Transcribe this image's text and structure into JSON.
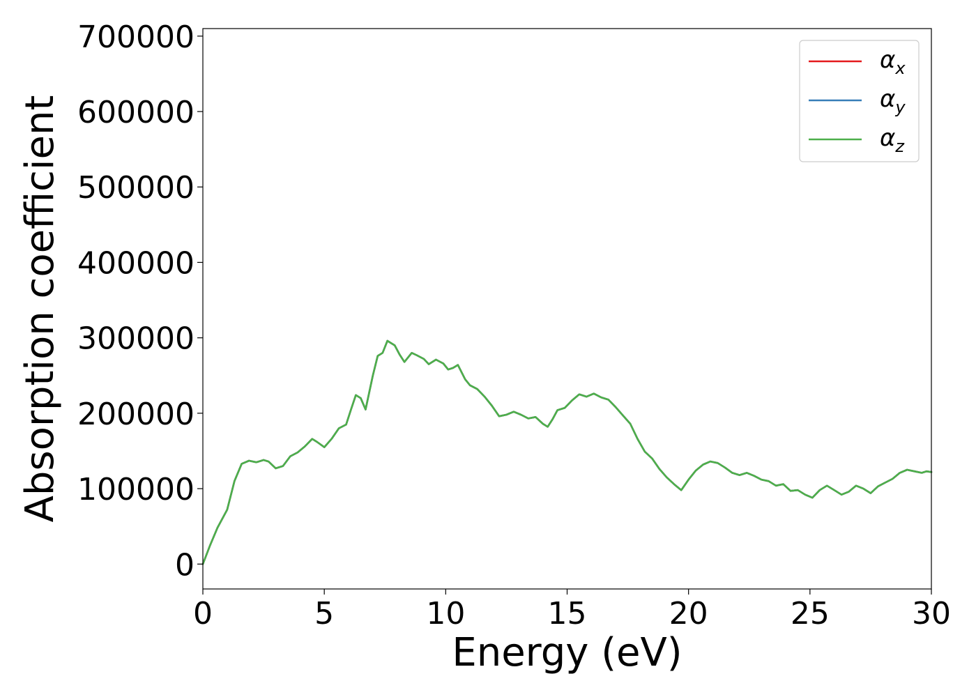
{
  "chart_data": {
    "type": "line",
    "xlabel": "Energy (eV)",
    "ylabel": "Absorption coefficient",
    "xlim": [
      0,
      30
    ],
    "ylim": [
      -33000,
      710000
    ],
    "x_ticks": [
      0,
      5,
      10,
      15,
      20,
      25,
      30
    ],
    "y_ticks": [
      0,
      100000,
      200000,
      300000,
      400000,
      500000,
      600000,
      700000
    ],
    "grid": false,
    "legend_position": "top-right",
    "x": [
      0,
      0.3,
      0.6,
      1.0,
      1.3,
      1.6,
      1.9,
      2.2,
      2.5,
      2.7,
      3.0,
      3.3,
      3.6,
      3.9,
      4.2,
      4.5,
      4.7,
      5.0,
      5.3,
      5.6,
      5.9,
      6.1,
      6.3,
      6.5,
      6.7,
      7.0,
      7.2,
      7.4,
      7.6,
      7.9,
      8.1,
      8.3,
      8.6,
      8.8,
      9.1,
      9.3,
      9.6,
      9.9,
      10.1,
      10.3,
      10.5,
      10.8,
      11.0,
      11.3,
      11.6,
      11.9,
      12.2,
      12.5,
      12.8,
      13.1,
      13.4,
      13.7,
      14.0,
      14.2,
      14.4,
      14.6,
      14.9,
      15.2,
      15.5,
      15.8,
      16.1,
      16.4,
      16.7,
      17.0,
      17.3,
      17.6,
      17.9,
      18.2,
      18.5,
      18.8,
      19.1,
      19.4,
      19.7,
      20.0,
      20.3,
      20.6,
      20.9,
      21.2,
      21.5,
      21.8,
      22.1,
      22.4,
      22.7,
      23.0,
      23.3,
      23.6,
      23.9,
      24.2,
      24.5,
      24.8,
      25.1,
      25.4,
      25.7,
      26.0,
      26.3,
      26.6,
      26.9,
      27.2,
      27.5,
      27.8,
      28.1,
      28.4,
      28.7,
      29.0,
      29.3,
      29.6,
      29.8,
      30.0
    ],
    "series": [
      {
        "name": "α_x",
        "color": "#e41a1c",
        "values": [
          0,
          25000,
          48000,
          72000,
          110000,
          133000,
          137000,
          135000,
          138000,
          136000,
          127000,
          130000,
          143000,
          148000,
          156000,
          166000,
          162000,
          155000,
          166000,
          180000,
          185000,
          205000,
          224000,
          220000,
          205000,
          250000,
          276000,
          280000,
          296000,
          290000,
          278000,
          268000,
          280000,
          277000,
          272000,
          265000,
          271000,
          266000,
          258000,
          260000,
          264000,
          245000,
          237000,
          232000,
          222000,
          210000,
          196000,
          198000,
          202000,
          198000,
          193000,
          195000,
          186000,
          182000,
          192000,
          204000,
          207000,
          217000,
          225000,
          222000,
          226000,
          221000,
          218000,
          208000,
          197000,
          186000,
          166000,
          149000,
          140000,
          126000,
          115000,
          106000,
          98000,
          112000,
          124000,
          132000,
          136000,
          134000,
          128000,
          121000,
          118000,
          121000,
          117000,
          112000,
          110000,
          104000,
          106000,
          97000,
          98000,
          92000,
          88000,
          98000,
          104000,
          98000,
          92000,
          96000,
          104000,
          100000,
          94000,
          103000,
          108000,
          113000,
          121000,
          125000,
          123000,
          121000,
          123000,
          122000
        ]
      },
      {
        "name": "α_y",
        "color": "#377eb8",
        "values": [
          0,
          25000,
          48000,
          72000,
          110000,
          133000,
          137000,
          135000,
          138000,
          136000,
          127000,
          130000,
          143000,
          148000,
          156000,
          166000,
          162000,
          155000,
          166000,
          180000,
          185000,
          205000,
          224000,
          220000,
          205000,
          250000,
          276000,
          280000,
          296000,
          290000,
          278000,
          268000,
          280000,
          277000,
          272000,
          265000,
          271000,
          266000,
          258000,
          260000,
          264000,
          245000,
          237000,
          232000,
          222000,
          210000,
          196000,
          198000,
          202000,
          198000,
          193000,
          195000,
          186000,
          182000,
          192000,
          204000,
          207000,
          217000,
          225000,
          222000,
          226000,
          221000,
          218000,
          208000,
          197000,
          186000,
          166000,
          149000,
          140000,
          126000,
          115000,
          106000,
          98000,
          112000,
          124000,
          132000,
          136000,
          134000,
          128000,
          121000,
          118000,
          121000,
          117000,
          112000,
          110000,
          104000,
          106000,
          97000,
          98000,
          92000,
          88000,
          98000,
          104000,
          98000,
          92000,
          96000,
          104000,
          100000,
          94000,
          103000,
          108000,
          113000,
          121000,
          125000,
          123000,
          121000,
          123000,
          122000
        ]
      },
      {
        "name": "α_z",
        "color": "#4daf4a",
        "values": [
          0,
          25000,
          48000,
          72000,
          110000,
          133000,
          137000,
          135000,
          138000,
          136000,
          127000,
          130000,
          143000,
          148000,
          156000,
          166000,
          162000,
          155000,
          166000,
          180000,
          185000,
          205000,
          224000,
          220000,
          205000,
          250000,
          276000,
          280000,
          296000,
          290000,
          278000,
          268000,
          280000,
          277000,
          272000,
          265000,
          271000,
          266000,
          258000,
          260000,
          264000,
          245000,
          237000,
          232000,
          222000,
          210000,
          196000,
          198000,
          202000,
          198000,
          193000,
          195000,
          186000,
          182000,
          192000,
          204000,
          207000,
          217000,
          225000,
          222000,
          226000,
          221000,
          218000,
          208000,
          197000,
          186000,
          166000,
          149000,
          140000,
          126000,
          115000,
          106000,
          98000,
          112000,
          124000,
          132000,
          136000,
          134000,
          128000,
          121000,
          118000,
          121000,
          117000,
          112000,
          110000,
          104000,
          106000,
          97000,
          98000,
          92000,
          88000,
          98000,
          104000,
          98000,
          92000,
          96000,
          104000,
          100000,
          94000,
          103000,
          108000,
          113000,
          121000,
          125000,
          123000,
          121000,
          123000,
          122000
        ]
      }
    ],
    "legend": [
      {
        "symbol": "α",
        "sub": "x",
        "color": "#e41a1c"
      },
      {
        "symbol": "α",
        "sub": "y",
        "color": "#377eb8"
      },
      {
        "symbol": "α",
        "sub": "z",
        "color": "#4daf4a"
      }
    ]
  }
}
